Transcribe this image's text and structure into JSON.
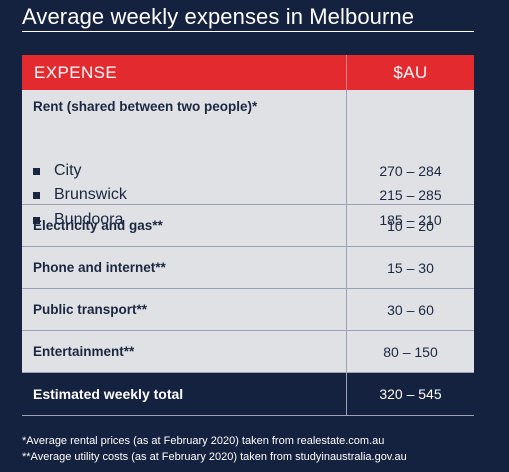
{
  "title": "Average weekly expenses in Melbourne",
  "table": {
    "header": {
      "expense": "EXPENSE",
      "amount": "$AU"
    },
    "rent": {
      "label": "Rent (shared between two people)*",
      "items": [
        {
          "name": "City",
          "value": "270 – 284"
        },
        {
          "name": "Brunswick",
          "value": "215 – 285"
        },
        {
          "name": "Bundoora",
          "value": "185 – 210"
        }
      ]
    },
    "rows": [
      {
        "label": "Electricity and gas**",
        "value": "10 – 20"
      },
      {
        "label": "Phone and internet**",
        "value": "15 – 30"
      },
      {
        "label": "Public transport**",
        "value": "30 – 60"
      },
      {
        "label": "Entertainment**",
        "value": "80 – 150"
      }
    ],
    "total": {
      "label": "Estimated weekly total",
      "value": "320 – 545"
    }
  },
  "footnotes": [
    "*Average rental prices (as at February 2020) taken from realestate.com.au",
    "**Average utility costs (as at February 2020) taken from studyinaustralia.gov.au"
  ],
  "colors": {
    "background": "#14213f",
    "header": "#e22a2f",
    "row": "#e0e1e4"
  }
}
